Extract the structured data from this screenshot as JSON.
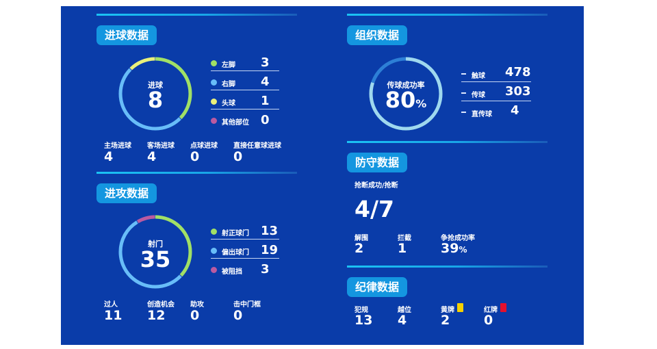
{
  "colors": {
    "panel": "#0a3ca9",
    "pill": "#1496e0",
    "green": "#a1e065",
    "blue": "#68bdf8",
    "yellow": "#e9f07a",
    "magenta": "#bb5aa0",
    "yellow_card": "#f5d100",
    "red_card": "#e4102d"
  },
  "goals": {
    "title": "进球数据",
    "ring_label": "进球",
    "ring_value": "8",
    "legend": [
      {
        "label": "左脚",
        "value": "3",
        "color": "green"
      },
      {
        "label": "右脚",
        "value": "4",
        "color": "blue"
      },
      {
        "label": "头球",
        "value": "1",
        "color": "yellow"
      },
      {
        "label": "其他部位",
        "value": "0",
        "color": "magenta"
      }
    ],
    "stats": [
      {
        "label": "主场进球",
        "value": "4"
      },
      {
        "label": "客场进球",
        "value": "4"
      },
      {
        "label": "点球进球",
        "value": "0"
      },
      {
        "label": "直接任意球进球",
        "value": "0"
      }
    ]
  },
  "attack": {
    "title": "进攻数据",
    "ring_label": "射门",
    "ring_value": "35",
    "legend": [
      {
        "label": "射正球门",
        "value": "13",
        "color": "green"
      },
      {
        "label": "偏出球门",
        "value": "19",
        "color": "blue"
      },
      {
        "label": "被阻挡",
        "value": "3",
        "color": "magenta"
      }
    ],
    "stats": [
      {
        "label": "过人",
        "value": "11"
      },
      {
        "label": "创造机会",
        "value": "12"
      },
      {
        "label": "助攻",
        "value": "0"
      },
      {
        "label": "击中门框",
        "value": "0"
      }
    ]
  },
  "organize": {
    "title": "组织数据",
    "ring_label": "传球成功率",
    "ring_value": "80",
    "ring_unit": "%",
    "success_rate": 0.8,
    "legend": [
      {
        "label": "触球",
        "value": "478"
      },
      {
        "label": "传球",
        "value": "303"
      },
      {
        "label": "直传球",
        "value": "4"
      }
    ]
  },
  "defense": {
    "title": "防守数据",
    "tackle_label": "抢断成功/抢断",
    "tackle_value": "4/7",
    "stats": [
      {
        "label": "解围",
        "value": "2"
      },
      {
        "label": "拦截",
        "value": "1"
      },
      {
        "label": "争抢成功率",
        "value": "39",
        "unit": "%"
      }
    ]
  },
  "discipline": {
    "title": "纪律数据",
    "stats": [
      {
        "label": "犯规",
        "value": "13"
      },
      {
        "label": "越位",
        "value": "4"
      },
      {
        "label": "黄牌",
        "value": "2"
      },
      {
        "label": "红牌",
        "value": "0"
      }
    ]
  }
}
